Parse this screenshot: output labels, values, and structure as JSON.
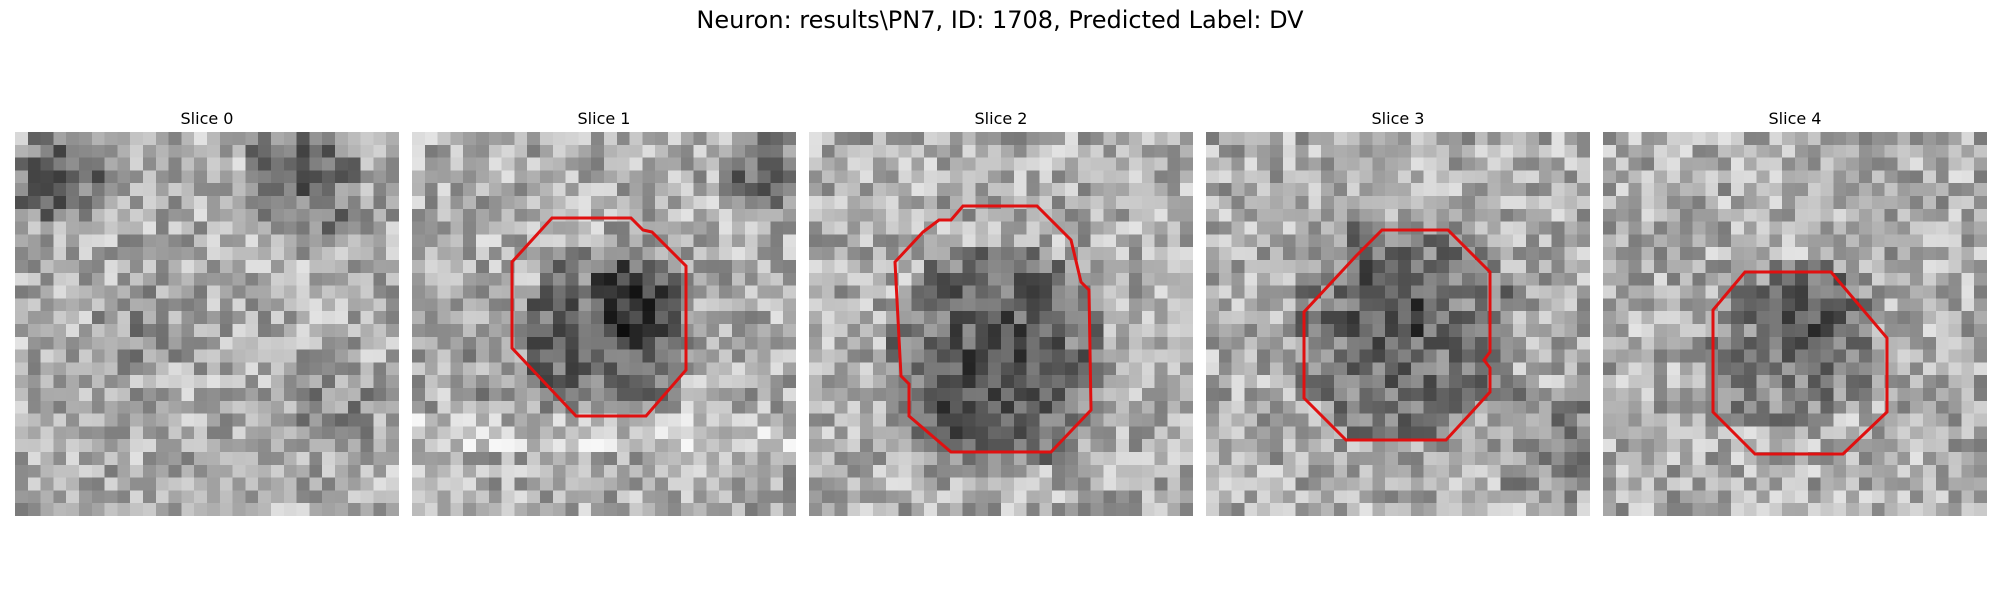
{
  "figure": {
    "title": "Neuron: results\\PN7, ID: 1708, Predicted Label: DV",
    "contour_color": "#e01010",
    "colormap": "gray",
    "grid_size": 30
  },
  "slices": [
    {
      "title": "Slice 0",
      "has_contour": false
    },
    {
      "title": "Slice 1",
      "has_contour": true
    },
    {
      "title": "Slice 2",
      "has_contour": true
    },
    {
      "title": "Slice 3",
      "has_contour": true
    },
    {
      "title": "Slice 4",
      "has_contour": true
    }
  ]
}
